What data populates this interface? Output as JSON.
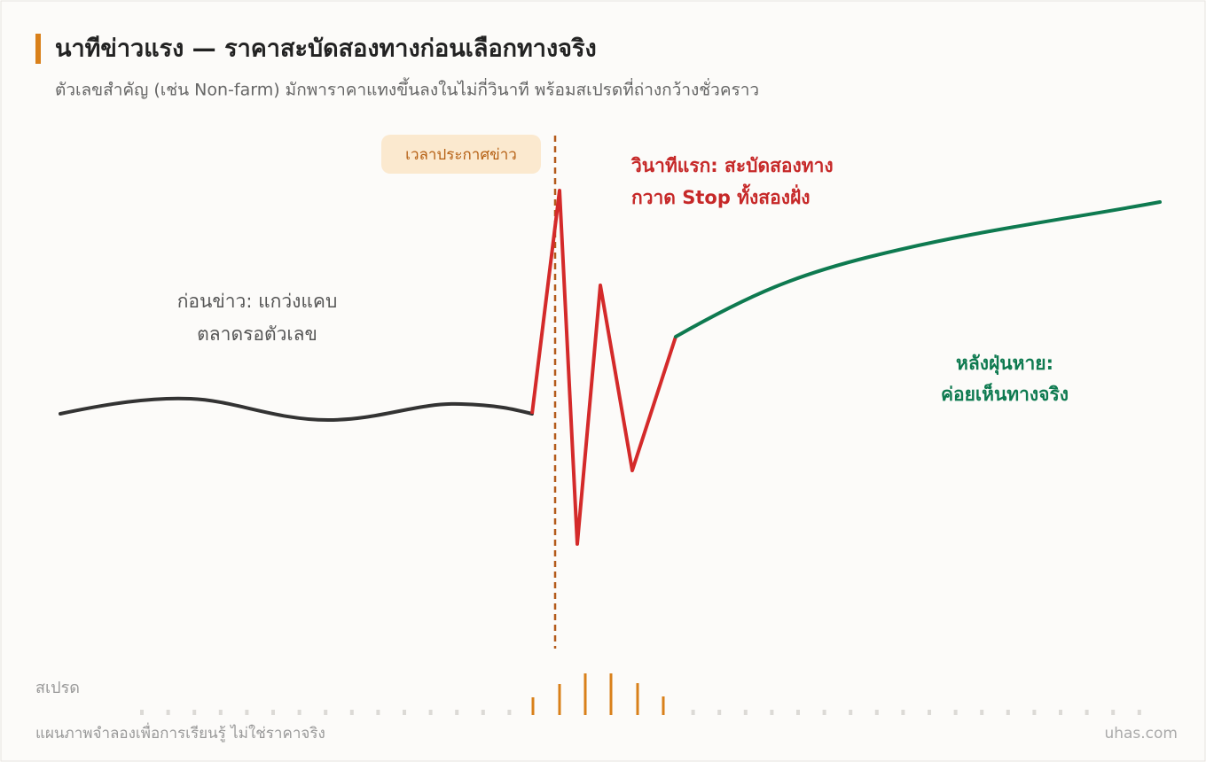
{
  "header": {
    "title": "นาทีข่าวแรง — ราคาสะบัดสองทางก่อนเลือกทางจริง",
    "subtitle": "ตัวเลขสำคัญ (เช่น Non-farm) มักพาราคาแทงขึ้นลงในไม่กี่วินาที พร้อมสเปรดที่ถ่างกว้างชั่วคราว"
  },
  "news_marker": {
    "label": "เวลาประกาศข่าว"
  },
  "annotations": {
    "before": [
      "ก่อนข่าว: แกว่งแคบ",
      "ตลาดรอตัวเลข"
    ],
    "spike": [
      "วินาทีแรก: สะบัดสองทาง",
      "กวาด Stop ทั้งสองฝั่ง"
    ],
    "after": [
      "หลังฝุ่นหาย:",
      "ค่อยเห็นทางจริง"
    ]
  },
  "spread": {
    "label": "สเปรด"
  },
  "footer": {
    "note": "แผนภาพจำลองเพื่อการเรียนรู้ ไม่ใช่ราคาจริง",
    "brand": "uhas.com"
  }
}
